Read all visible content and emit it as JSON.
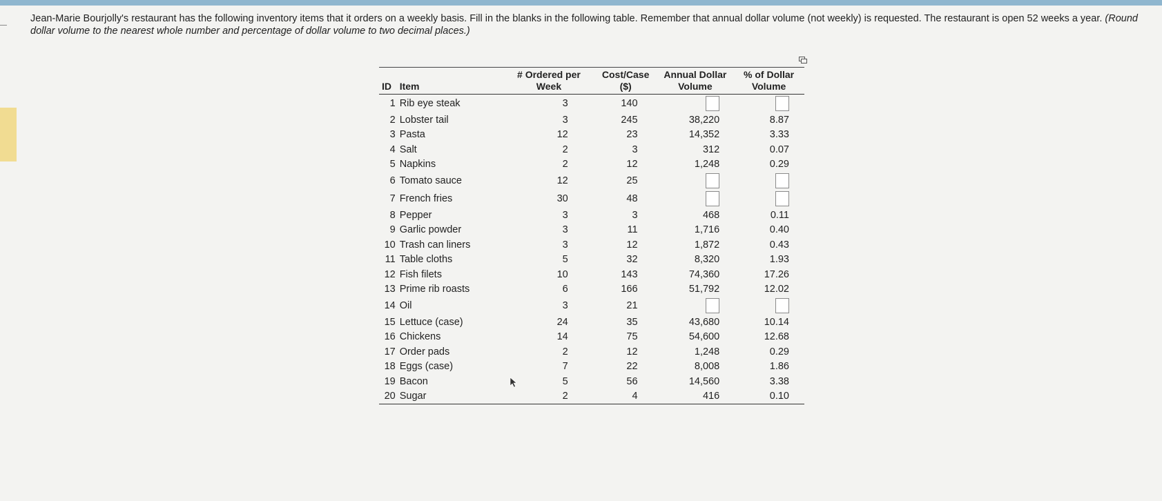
{
  "question": {
    "text": "Jean-Marie Bourjolly's restaurant has the following inventory items that it orders on a weekly basis. Fill in the blanks in the following table. Remember that annual dollar volume (not weekly) is requested. The restaurant is open 52 weeks a year.",
    "note": "(Round dollar volume to the nearest whole number and percentage of dollar volume to two decimal places.)"
  },
  "table": {
    "headers": {
      "id": "ID",
      "item": "Item",
      "ordered": "# Ordered per Week",
      "cost": "Cost/Case ($)",
      "annual": "Annual Dollar Volume",
      "pct": "% of Dollar Volume"
    },
    "rows": [
      {
        "id": "1",
        "item": "Rib eye steak",
        "ordered": "3",
        "cost": "140",
        "annual": null,
        "pct": null
      },
      {
        "id": "2",
        "item": "Lobster tail",
        "ordered": "3",
        "cost": "245",
        "annual": "38,220",
        "pct": "8.87"
      },
      {
        "id": "3",
        "item": "Pasta",
        "ordered": "12",
        "cost": "23",
        "annual": "14,352",
        "pct": "3.33"
      },
      {
        "id": "4",
        "item": "Salt",
        "ordered": "2",
        "cost": "3",
        "annual": "312",
        "pct": "0.07"
      },
      {
        "id": "5",
        "item": "Napkins",
        "ordered": "2",
        "cost": "12",
        "annual": "1,248",
        "pct": "0.29"
      },
      {
        "id": "6",
        "item": "Tomato sauce",
        "ordered": "12",
        "cost": "25",
        "annual": null,
        "pct": null
      },
      {
        "id": "7",
        "item": "French fries",
        "ordered": "30",
        "cost": "48",
        "annual": null,
        "pct": null
      },
      {
        "id": "8",
        "item": "Pepper",
        "ordered": "3",
        "cost": "3",
        "annual": "468",
        "pct": "0.11"
      },
      {
        "id": "9",
        "item": "Garlic powder",
        "ordered": "3",
        "cost": "11",
        "annual": "1,716",
        "pct": "0.40"
      },
      {
        "id": "10",
        "item": "Trash can liners",
        "ordered": "3",
        "cost": "12",
        "annual": "1,872",
        "pct": "0.43"
      },
      {
        "id": "11",
        "item": "Table cloths",
        "ordered": "5",
        "cost": "32",
        "annual": "8,320",
        "pct": "1.93"
      },
      {
        "id": "12",
        "item": "Fish filets",
        "ordered": "10",
        "cost": "143",
        "annual": "74,360",
        "pct": "17.26"
      },
      {
        "id": "13",
        "item": "Prime rib roasts",
        "ordered": "6",
        "cost": "166",
        "annual": "51,792",
        "pct": "12.02"
      },
      {
        "id": "14",
        "item": "Oil",
        "ordered": "3",
        "cost": "21",
        "annual": null,
        "pct": null
      },
      {
        "id": "15",
        "item": "Lettuce (case)",
        "ordered": "24",
        "cost": "35",
        "annual": "43,680",
        "pct": "10.14"
      },
      {
        "id": "16",
        "item": "Chickens",
        "ordered": "14",
        "cost": "75",
        "annual": "54,600",
        "pct": "12.68"
      },
      {
        "id": "17",
        "item": "Order pads",
        "ordered": "2",
        "cost": "12",
        "annual": "1,248",
        "pct": "0.29"
      },
      {
        "id": "18",
        "item": "Eggs (case)",
        "ordered": "7",
        "cost": "22",
        "annual": "8,008",
        "pct": "1.86"
      },
      {
        "id": "19",
        "item": "Bacon",
        "ordered": "5",
        "cost": "56",
        "annual": "14,560",
        "pct": "3.38"
      },
      {
        "id": "20",
        "item": "Sugar",
        "ordered": "2",
        "cost": "4",
        "annual": "416",
        "pct": "0.10"
      }
    ]
  }
}
